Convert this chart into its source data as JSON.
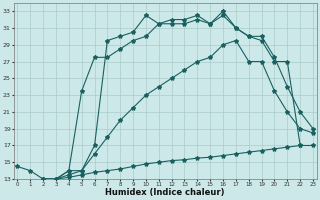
{
  "xlabel": "Humidex (Indice chaleur)",
  "background_color": "#cce8e8",
  "grid_color": "#aacccc",
  "line_color": "#1a6060",
  "xlim": [
    0,
    23
  ],
  "ylim": [
    13,
    34
  ],
  "xticks": [
    0,
    1,
    2,
    3,
    4,
    5,
    6,
    7,
    8,
    9,
    10,
    11,
    12,
    13,
    14,
    15,
    16,
    17,
    18,
    19,
    20,
    21,
    22,
    23
  ],
  "yticks": [
    13,
    15,
    17,
    19,
    21,
    23,
    25,
    27,
    29,
    31,
    33
  ],
  "lines": [
    {
      "x": [
        0,
        1,
        2,
        3,
        4,
        5,
        6,
        7,
        8,
        9,
        10,
        11,
        12,
        13,
        14,
        15,
        16,
        17,
        18,
        19,
        20,
        21,
        22,
        23
      ],
      "y": [
        14.5,
        14,
        13,
        13,
        13.2,
        13.5,
        13.8,
        14.0,
        14.2,
        14.5,
        14.8,
        15.0,
        15.2,
        15.3,
        15.5,
        15.6,
        15.8,
        16.0,
        16.2,
        16.4,
        16.6,
        16.8,
        17.0,
        17.0
      ]
    },
    {
      "x": [
        2,
        3,
        4,
        5,
        6,
        7,
        8,
        9,
        10,
        11,
        12,
        13,
        14,
        15,
        16,
        17,
        18,
        19,
        20,
        21,
        22,
        23
      ],
      "y": [
        13,
        13,
        13.5,
        14.0,
        16.0,
        18.0,
        20.0,
        21.5,
        23.0,
        24.0,
        25.0,
        26.0,
        27.0,
        27.5,
        29.0,
        29.5,
        27.0,
        27.0,
        23.5,
        21.0,
        19.0,
        18.5
      ]
    },
    {
      "x": [
        2,
        3,
        4,
        5,
        6,
        7,
        8,
        9,
        10,
        11,
        12,
        13,
        14,
        15,
        16,
        17,
        18,
        19,
        20,
        21,
        22
      ],
      "y": [
        13,
        13,
        14,
        23.5,
        27.5,
        27.5,
        28.5,
        29.5,
        30.0,
        31.5,
        31.5,
        31.5,
        32.0,
        31.5,
        33.0,
        31.0,
        30.0,
        29.5,
        27.0,
        27.0,
        17.0
      ]
    },
    {
      "x": [
        2,
        3,
        4,
        5,
        6,
        7,
        8,
        9,
        10,
        11,
        12,
        13,
        14,
        15,
        16,
        17,
        18,
        19,
        20,
        21,
        22,
        23
      ],
      "y": [
        13,
        13,
        14,
        14,
        17.0,
        29.5,
        30.0,
        30.5,
        32.5,
        31.5,
        32.0,
        32.0,
        32.5,
        31.5,
        32.5,
        31.0,
        30.0,
        30.0,
        27.5,
        24.0,
        21.0,
        19.0
      ]
    }
  ]
}
